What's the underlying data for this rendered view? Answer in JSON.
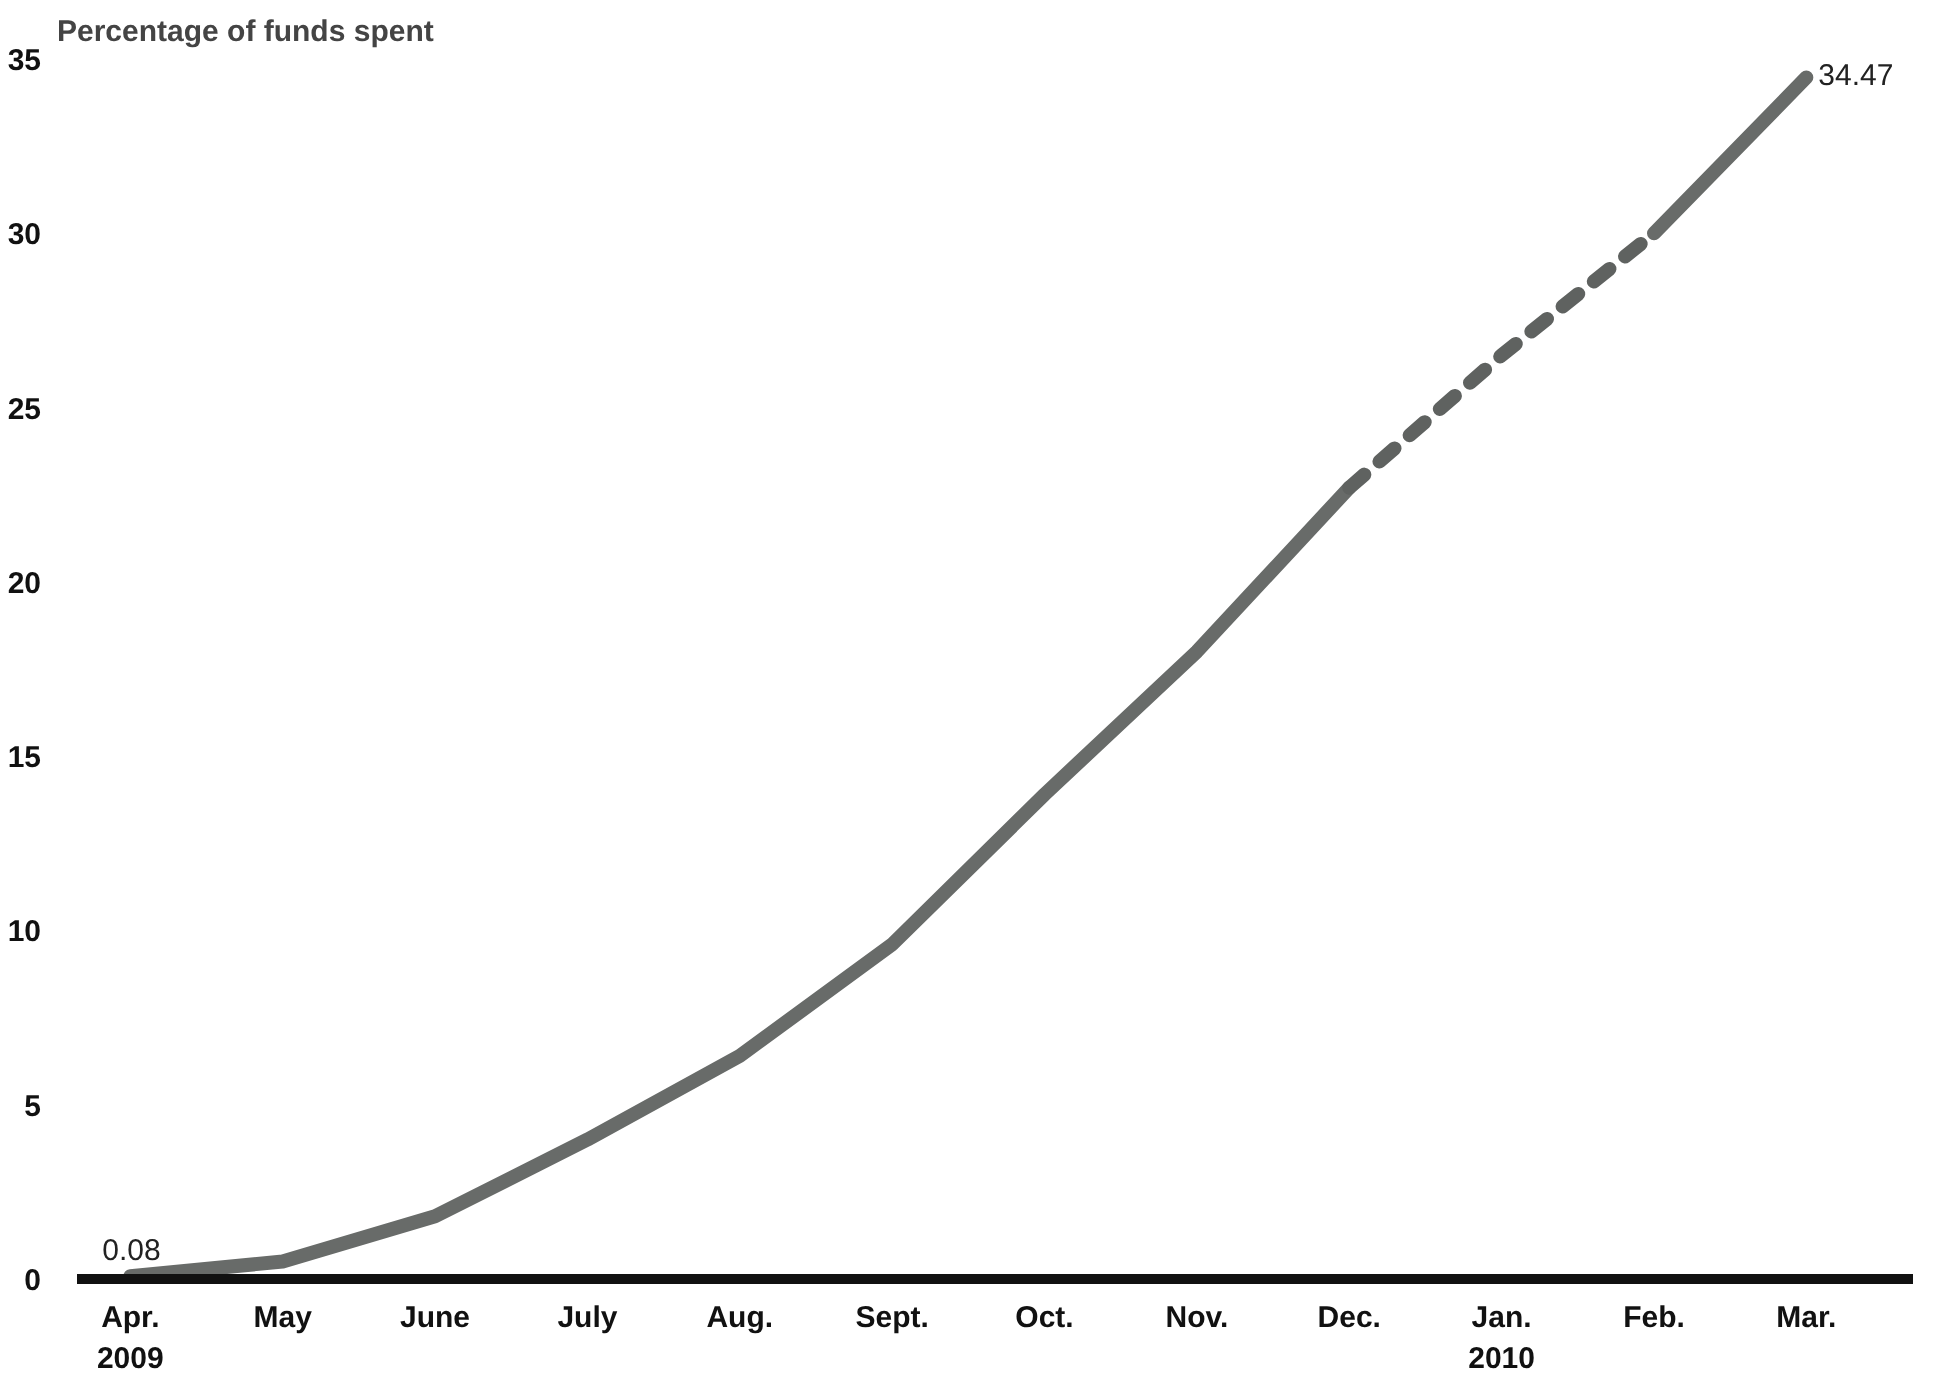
{
  "chart_data": {
    "type": "line",
    "ylabel": "Percentage of funds spent",
    "categories": [
      "Apr.\n2009",
      "May",
      "June",
      "July",
      "Aug.",
      "Sept.",
      "Oct.",
      "Nov.",
      "Dec.",
      "Jan.\n2010",
      "Feb.",
      "Mar."
    ],
    "series": [
      {
        "color": "#686b69",
        "line_style": "solid",
        "values": [
          0.08,
          0.5,
          1.8,
          4.0,
          6.4,
          9.6,
          13.9,
          18.0,
          22.7,
          null,
          30.0,
          34.47
        ],
        "value_labels": [
          "0.08",
          null,
          null,
          null,
          null,
          null,
          null,
          null,
          null,
          null,
          null,
          "34.47"
        ]
      },
      {
        "color": "#5f6260",
        "line_style": "dashed",
        "values": [
          null,
          null,
          null,
          null,
          null,
          null,
          null,
          null,
          22.7,
          26.5,
          30.0,
          null
        ]
      }
    ],
    "ylim": [
      0,
      35
    ],
    "yticks": [
      0,
      5,
      10,
      15,
      20,
      25,
      30,
      35
    ],
    "grid": false
  }
}
